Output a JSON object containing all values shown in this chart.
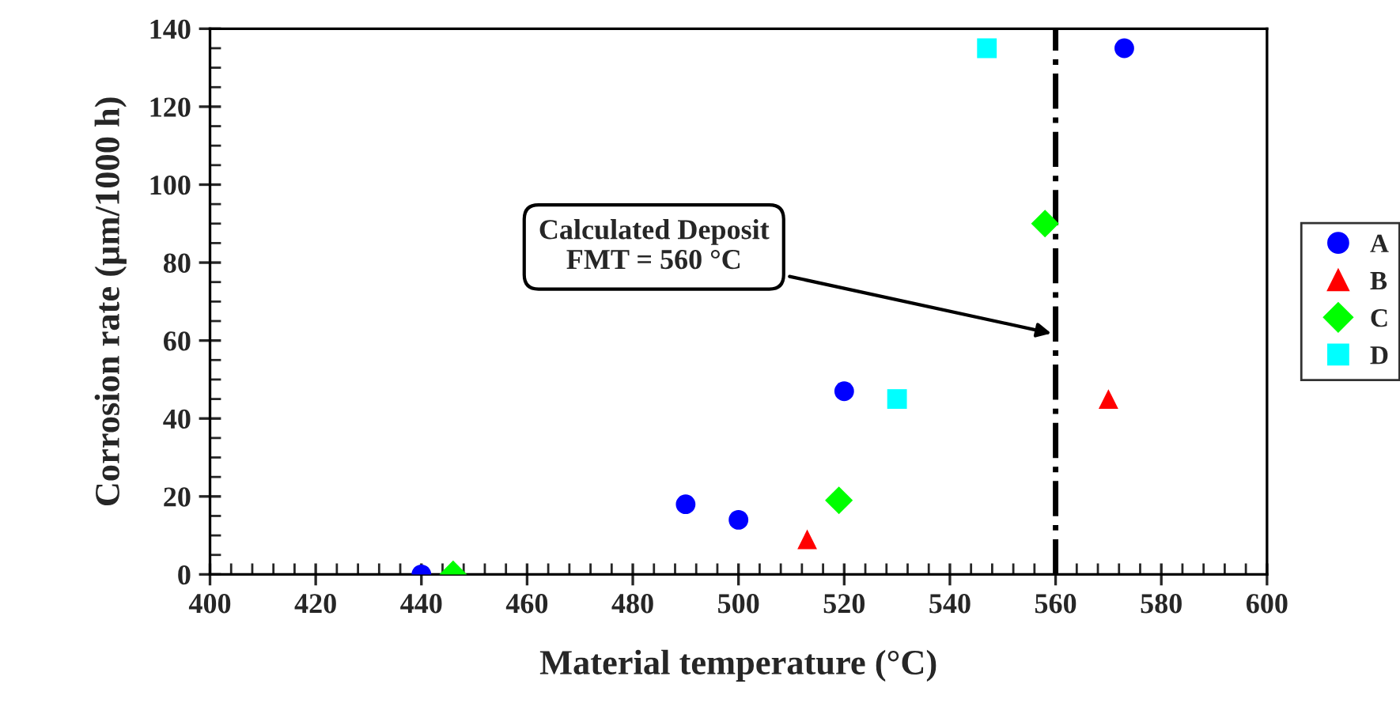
{
  "chart_data": {
    "type": "scatter",
    "xlabel": "Material temperature (°C)",
    "ylabel": "Corrosion rate (µm/1000 h)",
    "xlim": [
      400,
      600
    ],
    "xticks": [
      400,
      420,
      440,
      460,
      480,
      500,
      520,
      540,
      560,
      580,
      600
    ],
    "ylim": [
      0,
      140
    ],
    "yticks": [
      0,
      20,
      40,
      60,
      80,
      100,
      120,
      140
    ],
    "grid": false,
    "legend": "right",
    "series": [
      {
        "name": "A",
        "color": "#0000ff",
        "marker": "circle",
        "x": [
          440,
          490,
          500,
          520,
          573
        ],
        "values": [
          0,
          18,
          14,
          47,
          135
        ]
      },
      {
        "name": "B",
        "color": "#ff0000",
        "marker": "triangle",
        "x": [
          513,
          570
        ],
        "values": [
          9,
          45
        ]
      },
      {
        "name": "C",
        "color": "#00ff00",
        "marker": "diamond",
        "x": [
          446,
          519,
          558
        ],
        "values": [
          0,
          19,
          90
        ]
      },
      {
        "name": "D",
        "color": "#00ffff",
        "marker": "square",
        "x": [
          547,
          530
        ],
        "values": [
          135,
          45
        ]
      }
    ],
    "ref_lines": [
      {
        "axis": "x",
        "value": 560,
        "color": "#000000",
        "line_style": "dashdot",
        "label": "Calculated Deposit\nFMT = 560 °C"
      }
    ]
  }
}
